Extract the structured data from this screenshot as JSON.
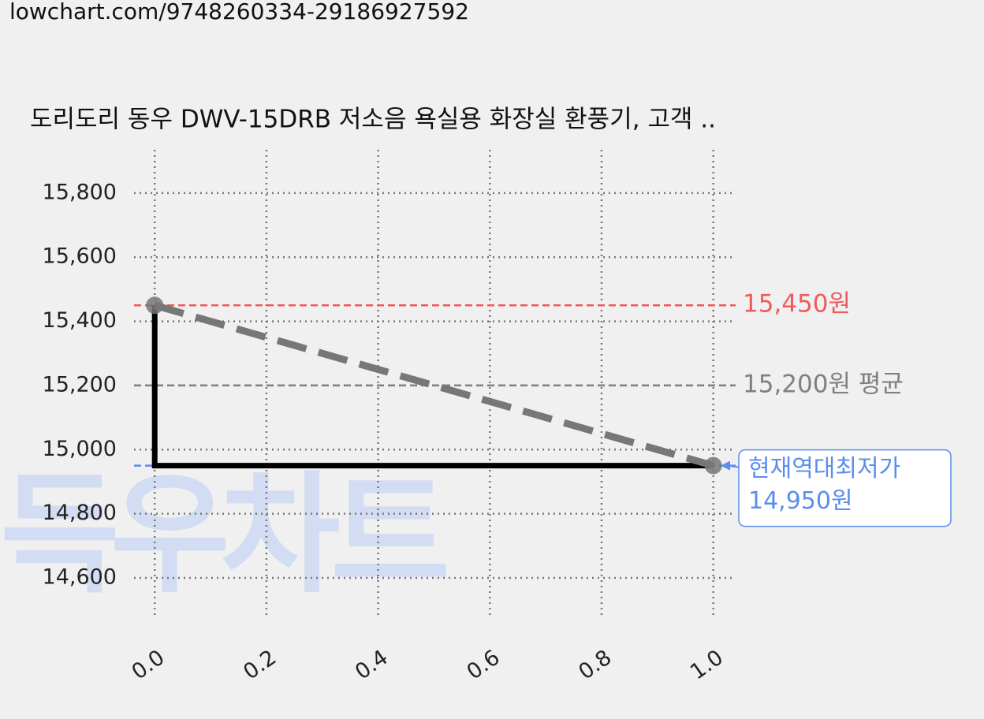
{
  "url": "lowchart.com/9748260334-29186927592",
  "chart_data": {
    "type": "line",
    "title": "도리도리 동우 DWV-15DRB 저소음 욕실용 화장실 환풍기, 고객 ..",
    "watermark": "득우차트",
    "xlim": [
      -0.037,
      1.04
    ],
    "xticks": [
      {
        "value": 0,
        "label": "0.0"
      },
      0.2,
      0.4,
      0.6,
      0.8,
      {
        "value": 1,
        "label": "1.0"
      }
    ],
    "ylim": [
      14472,
      15935
    ],
    "yticks": [
      {
        "value": 14600,
        "label": "14,600"
      },
      {
        "value": 14800,
        "label": "14,800"
      },
      {
        "value": 15000,
        "label": "15,000"
      },
      {
        "value": 15200,
        "label": "15,200"
      },
      {
        "value": 15400,
        "label": "15,400"
      },
      {
        "value": 15600,
        "label": "15,600"
      },
      {
        "value": 15800,
        "label": "15,800"
      }
    ],
    "grid": true,
    "series": [
      {
        "color": "#000000",
        "x": [
          0,
          0,
          1
        ],
        "values": [
          15450,
          14950,
          14950
        ]
      },
      {
        "color": "#777777",
        "dashed": true,
        "markers": true,
        "x": [
          0,
          1
        ],
        "values": [
          15450,
          14950
        ]
      }
    ],
    "reference_lines": [
      {
        "value": 15450,
        "label": "15,450원",
        "color": "#f05a5a"
      },
      {
        "value": 15200,
        "label": "15,200원 평균",
        "color": "#808080"
      },
      {
        "value": 14950,
        "label": "14,950원",
        "annotation": "현재역대최저가",
        "color": "#5b8def"
      }
    ]
  }
}
